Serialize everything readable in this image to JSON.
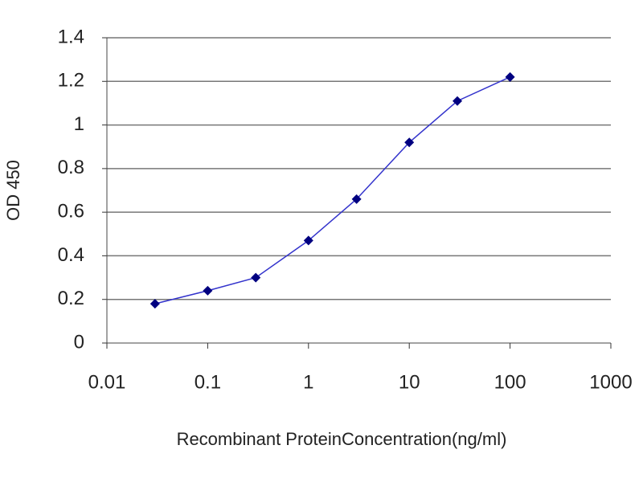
{
  "chart_data": {
    "type": "line",
    "xlabel": "Recombinant ProteinConcentration(ng/ml)",
    "ylabel": "OD 450",
    "x": [
      0.03,
      0.1,
      0.3,
      1,
      3,
      10,
      30,
      100
    ],
    "values": [
      0.18,
      0.24,
      0.3,
      0.47,
      0.66,
      0.92,
      1.11,
      1.22
    ],
    "color": "#3333cc",
    "marker_color": "#000080",
    "xscale": "log",
    "xlim": [
      0.01,
      1000
    ],
    "xticks": [
      0.01,
      0.1,
      1,
      10,
      100,
      1000
    ],
    "ylim": [
      0,
      1.4
    ],
    "yticks": [
      0,
      0.2,
      0.4,
      0.6,
      0.8,
      1,
      1.2,
      1.4
    ],
    "grid": true
  }
}
